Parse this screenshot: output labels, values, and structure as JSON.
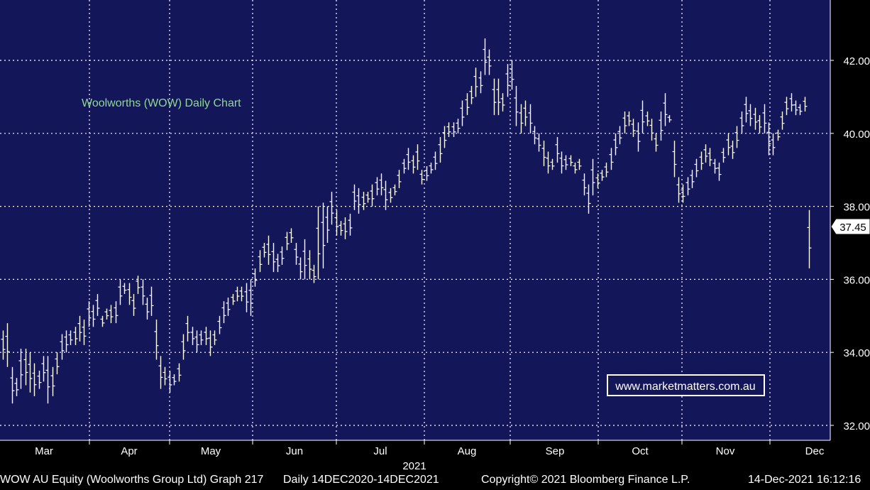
{
  "chart_data": {
    "type": "ohlc",
    "title": "Woolworths (WOW) Daily Chart",
    "year_label": "2021",
    "months": [
      "Mar",
      "Apr",
      "May",
      "Jun",
      "Jul",
      "Aug",
      "Sep",
      "Oct",
      "Nov",
      "Dec"
    ],
    "y_ticks": [
      "32.00",
      "34.00",
      "36.00",
      "38.00",
      "40.00",
      "42.00"
    ],
    "ylim": [
      31.6,
      43.3
    ],
    "last_price": "37.45",
    "last_value": 37.45,
    "grid": true,
    "bars": [
      {
        "h": 34.6,
        "l": 33.8
      },
      {
        "h": 34.8,
        "l": 33.6
      },
      {
        "h": 33.6,
        "l": 32.6
      },
      {
        "h": 33.3,
        "l": 32.8
      },
      {
        "h": 34.1,
        "l": 33.0
      },
      {
        "h": 34.1,
        "l": 33.1
      },
      {
        "h": 34.0,
        "l": 32.9
      },
      {
        "h": 33.7,
        "l": 32.8
      },
      {
        "h": 33.5,
        "l": 33.0
      },
      {
        "h": 33.9,
        "l": 33.2
      },
      {
        "h": 33.9,
        "l": 32.6
      },
      {
        "h": 33.6,
        "l": 32.8
      },
      {
        "h": 34.0,
        "l": 33.4
      },
      {
        "h": 34.5,
        "l": 33.8
      },
      {
        "h": 34.6,
        "l": 34.0
      },
      {
        "h": 34.6,
        "l": 34.2
      },
      {
        "h": 34.7,
        "l": 34.2
      },
      {
        "h": 35.0,
        "l": 34.3
      },
      {
        "h": 34.9,
        "l": 34.2
      },
      {
        "h": 35.4,
        "l": 34.7
      },
      {
        "h": 35.3,
        "l": 34.7
      },
      {
        "h": 35.6,
        "l": 35.0
      },
      {
        "h": 35.0,
        "l": 34.7
      },
      {
        "h": 35.2,
        "l": 34.9
      },
      {
        "h": 35.3,
        "l": 34.8
      },
      {
        "h": 35.4,
        "l": 34.8
      },
      {
        "h": 36.0,
        "l": 35.3
      },
      {
        "h": 35.9,
        "l": 35.6
      },
      {
        "h": 35.9,
        "l": 35.3
      },
      {
        "h": 35.6,
        "l": 35.0
      },
      {
        "h": 36.1,
        "l": 35.6
      },
      {
        "h": 36.0,
        "l": 35.3
      },
      {
        "h": 35.5,
        "l": 34.9
      },
      {
        "h": 35.8,
        "l": 35.0
      },
      {
        "h": 34.9,
        "l": 33.8
      },
      {
        "h": 33.9,
        "l": 33.0
      },
      {
        "h": 33.6,
        "l": 33.1
      },
      {
        "h": 33.5,
        "l": 32.9
      },
      {
        "h": 33.4,
        "l": 33.1
      },
      {
        "h": 33.7,
        "l": 33.2
      },
      {
        "h": 34.5,
        "l": 33.8
      },
      {
        "h": 35.0,
        "l": 34.3
      },
      {
        "h": 34.7,
        "l": 34.2
      },
      {
        "h": 34.6,
        "l": 34.0
      },
      {
        "h": 34.6,
        "l": 34.2
      },
      {
        "h": 34.7,
        "l": 34.2
      },
      {
        "h": 34.6,
        "l": 33.9
      },
      {
        "h": 34.6,
        "l": 34.2
      },
      {
        "h": 35.0,
        "l": 34.5
      },
      {
        "h": 35.4,
        "l": 34.8
      },
      {
        "h": 35.5,
        "l": 35.0
      },
      {
        "h": 35.6,
        "l": 35.3
      },
      {
        "h": 35.8,
        "l": 35.4
      },
      {
        "h": 35.8,
        "l": 35.4
      },
      {
        "h": 35.9,
        "l": 35.1
      },
      {
        "h": 36.0,
        "l": 35.0
      },
      {
        "h": 36.3,
        "l": 35.8
      },
      {
        "h": 36.8,
        "l": 36.2
      },
      {
        "h": 37.0,
        "l": 36.6
      },
      {
        "h": 37.2,
        "l": 36.4
      },
      {
        "h": 37.0,
        "l": 36.2
      },
      {
        "h": 36.7,
        "l": 36.2
      },
      {
        "h": 36.9,
        "l": 36.4
      },
      {
        "h": 37.3,
        "l": 36.8
      },
      {
        "h": 37.4,
        "l": 37.0
      },
      {
        "h": 37.0,
        "l": 36.4
      },
      {
        "h": 36.6,
        "l": 36.0
      },
      {
        "h": 37.1,
        "l": 36.0
      },
      {
        "h": 36.8,
        "l": 36.0
      },
      {
        "h": 36.4,
        "l": 35.9
      },
      {
        "h": 38.0,
        "l": 36.0
      },
      {
        "h": 38.1,
        "l": 36.3
      },
      {
        "h": 38.0,
        "l": 37.0
      },
      {
        "h": 38.4,
        "l": 37.5
      },
      {
        "h": 37.9,
        "l": 37.2
      },
      {
        "h": 37.6,
        "l": 37.2
      },
      {
        "h": 37.7,
        "l": 37.1
      },
      {
        "h": 37.8,
        "l": 37.2
      },
      {
        "h": 38.6,
        "l": 37.9
      },
      {
        "h": 38.5,
        "l": 37.8
      },
      {
        "h": 38.4,
        "l": 37.9
      },
      {
        "h": 38.4,
        "l": 38.1
      },
      {
        "h": 38.6,
        "l": 38.0
      },
      {
        "h": 38.8,
        "l": 38.3
      },
      {
        "h": 38.9,
        "l": 38.3
      },
      {
        "h": 38.7,
        "l": 37.9
      },
      {
        "h": 38.5,
        "l": 38.1
      },
      {
        "h": 38.6,
        "l": 38.3
      },
      {
        "h": 39.0,
        "l": 38.5
      },
      {
        "h": 39.3,
        "l": 38.9
      },
      {
        "h": 39.6,
        "l": 39.0
      },
      {
        "h": 39.4,
        "l": 38.9
      },
      {
        "h": 39.7,
        "l": 39.0
      },
      {
        "h": 39.0,
        "l": 38.6
      },
      {
        "h": 39.1,
        "l": 38.7
      },
      {
        "h": 39.2,
        "l": 38.9
      },
      {
        "h": 39.5,
        "l": 39.0
      },
      {
        "h": 39.9,
        "l": 39.2
      },
      {
        "h": 40.2,
        "l": 39.6
      },
      {
        "h": 40.3,
        "l": 39.9
      },
      {
        "h": 40.3,
        "l": 39.9
      },
      {
        "h": 40.4,
        "l": 40.0
      },
      {
        "h": 40.9,
        "l": 40.2
      },
      {
        "h": 41.1,
        "l": 40.5
      },
      {
        "h": 41.3,
        "l": 40.8
      },
      {
        "h": 41.8,
        "l": 41.0
      },
      {
        "h": 41.7,
        "l": 41.1
      },
      {
        "h": 42.6,
        "l": 41.6
      },
      {
        "h": 42.3,
        "l": 41.6
      },
      {
        "h": 41.5,
        "l": 40.5
      },
      {
        "h": 41.5,
        "l": 40.5
      },
      {
        "h": 41.1,
        "l": 40.6
      },
      {
        "h": 41.9,
        "l": 41.0
      },
      {
        "h": 42.0,
        "l": 41.2
      },
      {
        "h": 41.3,
        "l": 40.2
      },
      {
        "h": 40.8,
        "l": 40.0
      },
      {
        "h": 40.9,
        "l": 40.2
      },
      {
        "h": 40.8,
        "l": 40.0
      },
      {
        "h": 40.2,
        "l": 39.7
      },
      {
        "h": 40.0,
        "l": 39.5
      },
      {
        "h": 39.8,
        "l": 39.1
      },
      {
        "h": 39.5,
        "l": 38.9
      },
      {
        "h": 39.3,
        "l": 39.0
      },
      {
        "h": 39.9,
        "l": 39.2
      },
      {
        "h": 39.5,
        "l": 38.9
      },
      {
        "h": 39.4,
        "l": 39.0
      },
      {
        "h": 39.4,
        "l": 39.1
      },
      {
        "h": 39.2,
        "l": 38.9
      },
      {
        "h": 39.3,
        "l": 39.0
      },
      {
        "h": 38.9,
        "l": 38.3
      },
      {
        "h": 38.6,
        "l": 37.8
      },
      {
        "h": 39.3,
        "l": 38.3
      },
      {
        "h": 38.9,
        "l": 38.5
      },
      {
        "h": 39.0,
        "l": 38.7
      },
      {
        "h": 39.2,
        "l": 38.8
      },
      {
        "h": 39.6,
        "l": 39.0
      },
      {
        "h": 40.0,
        "l": 39.4
      },
      {
        "h": 40.2,
        "l": 39.7
      },
      {
        "h": 40.6,
        "l": 40.0
      },
      {
        "h": 40.6,
        "l": 40.2
      },
      {
        "h": 40.4,
        "l": 39.9
      },
      {
        "h": 40.3,
        "l": 39.5
      },
      {
        "h": 40.9,
        "l": 40.0
      },
      {
        "h": 40.6,
        "l": 40.2
      },
      {
        "h": 40.4,
        "l": 39.8
      },
      {
        "h": 40.0,
        "l": 39.5
      },
      {
        "h": 40.6,
        "l": 39.8
      },
      {
        "h": 41.1,
        "l": 40.2
      },
      {
        "h": 40.5,
        "l": 40.3
      },
      {
        "h": 39.8,
        "l": 38.8
      },
      {
        "h": 38.8,
        "l": 38.1
      },
      {
        "h": 38.6,
        "l": 38.1
      },
      {
        "h": 38.8,
        "l": 38.3
      },
      {
        "h": 39.0,
        "l": 38.5
      },
      {
        "h": 39.3,
        "l": 38.8
      },
      {
        "h": 39.5,
        "l": 39.0
      },
      {
        "h": 39.7,
        "l": 39.2
      },
      {
        "h": 39.6,
        "l": 39.1
      },
      {
        "h": 39.3,
        "l": 38.9
      },
      {
        "h": 39.2,
        "l": 38.7
      },
      {
        "h": 39.6,
        "l": 39.2
      },
      {
        "h": 40.0,
        "l": 39.4
      },
      {
        "h": 39.8,
        "l": 39.3
      },
      {
        "h": 40.2,
        "l": 39.6
      },
      {
        "h": 40.6,
        "l": 40.0
      },
      {
        "h": 41.0,
        "l": 40.3
      },
      {
        "h": 40.8,
        "l": 40.2
      },
      {
        "h": 40.7,
        "l": 40.1
      },
      {
        "h": 40.5,
        "l": 40.0
      },
      {
        "h": 40.8,
        "l": 40.0
      },
      {
        "h": 40.3,
        "l": 39.4
      },
      {
        "h": 40.0,
        "l": 39.4
      },
      {
        "h": 40.1,
        "l": 39.8
      },
      {
        "h": 40.6,
        "l": 40.1
      },
      {
        "h": 41.0,
        "l": 40.5
      },
      {
        "h": 41.1,
        "l": 40.6
      },
      {
        "h": 40.9,
        "l": 40.5
      },
      {
        "h": 40.8,
        "l": 40.5
      },
      {
        "h": 41.0,
        "l": 40.6
      },
      {
        "h": 37.9,
        "l": 36.3
      }
    ]
  },
  "annotation": {
    "website": "www.marketmatters.com.au"
  },
  "footer": {
    "security": "WOW AU Equity (Woolworths Group Ltd) Graph 217",
    "range": "Daily 14DEC2020-14DEC2021",
    "copyright": "Copyright© 2021 Bloomberg Finance L.P.",
    "timestamp": "14-Dec-2021 16:12:16"
  },
  "colors": {
    "plot_bg": "#14165a",
    "grid": "#ffffff",
    "bars": "#ffffff",
    "title": "#8fd98f",
    "website": "#ffffff",
    "text": "#ffffff"
  }
}
